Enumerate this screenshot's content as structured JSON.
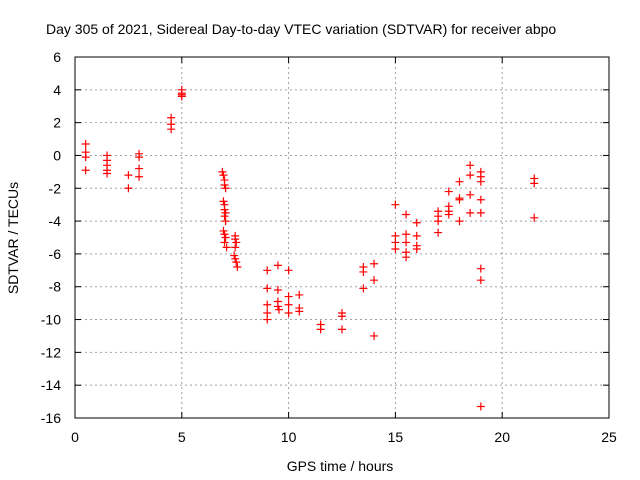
{
  "chart_data": {
    "type": "scatter",
    "title": "Day 305 of 2021, Sidereal Day-to-day VTEC variation (SDTVAR) for receiver abpo",
    "xlabel": "GPS time / hours",
    "ylabel": "SDTVAR / TECUs",
    "xlim": [
      0,
      25
    ],
    "ylim": [
      -16,
      6
    ],
    "xticks": [
      "0",
      "5",
      "10",
      "15",
      "20",
      "25"
    ],
    "yticks": [
      "6",
      "4",
      "2",
      "0",
      "-2",
      "-4",
      "-6",
      "-8",
      "-10",
      "-12",
      "-14",
      "-16"
    ],
    "grid": true,
    "marker": "plus",
    "color": "#ff0000",
    "series": [
      {
        "name": "SDTVAR",
        "points": [
          [
            0.5,
            0.7
          ],
          [
            0.5,
            0.2
          ],
          [
            0.5,
            -0.1
          ],
          [
            0.5,
            -0.9
          ],
          [
            1.5,
            0.0
          ],
          [
            1.5,
            -0.3
          ],
          [
            1.5,
            -0.6
          ],
          [
            1.5,
            -0.9
          ],
          [
            1.5,
            -1.1
          ],
          [
            2.5,
            -1.2
          ],
          [
            2.5,
            -2.0
          ],
          [
            3.0,
            0.1
          ],
          [
            3.0,
            -0.1
          ],
          [
            3.0,
            -0.8
          ],
          [
            3.0,
            -1.3
          ],
          [
            4.5,
            2.3
          ],
          [
            4.5,
            1.9
          ],
          [
            4.5,
            1.6
          ],
          [
            5.0,
            4.0
          ],
          [
            5.0,
            3.8
          ],
          [
            5.0,
            3.7
          ],
          [
            5.0,
            3.6
          ],
          [
            6.9,
            -1.0
          ],
          [
            6.95,
            -1.2
          ],
          [
            7.0,
            -1.5
          ],
          [
            7.0,
            -1.8
          ],
          [
            7.05,
            -2.0
          ],
          [
            6.95,
            -2.8
          ],
          [
            7.0,
            -3.0
          ],
          [
            7.0,
            -3.3
          ],
          [
            7.05,
            -3.5
          ],
          [
            7.0,
            -3.7
          ],
          [
            7.05,
            -4.0
          ],
          [
            6.95,
            -4.6
          ],
          [
            7.0,
            -4.8
          ],
          [
            7.05,
            -5.0
          ],
          [
            7.0,
            -5.3
          ],
          [
            7.1,
            -5.6
          ],
          [
            7.5,
            -4.9
          ],
          [
            7.5,
            -5.1
          ],
          [
            7.55,
            -5.3
          ],
          [
            7.5,
            -5.6
          ],
          [
            7.45,
            -6.1
          ],
          [
            7.5,
            -6.3
          ],
          [
            7.55,
            -6.5
          ],
          [
            7.6,
            -6.8
          ],
          [
            9.0,
            -7.0
          ],
          [
            9.0,
            -8.1
          ],
          [
            9.0,
            -9.1
          ],
          [
            9.0,
            -9.6
          ],
          [
            9.0,
            -10.0
          ],
          [
            9.5,
            -6.7
          ],
          [
            9.5,
            -8.2
          ],
          [
            9.5,
            -8.9
          ],
          [
            9.5,
            -9.2
          ],
          [
            9.55,
            -9.4
          ],
          [
            10.0,
            -7.0
          ],
          [
            10.0,
            -8.6
          ],
          [
            10.0,
            -9.1
          ],
          [
            10.0,
            -9.6
          ],
          [
            10.5,
            -8.5
          ],
          [
            10.5,
            -9.3
          ],
          [
            10.5,
            -9.5
          ],
          [
            11.5,
            -10.3
          ],
          [
            11.5,
            -10.6
          ],
          [
            12.5,
            -9.6
          ],
          [
            12.5,
            -9.8
          ],
          [
            12.5,
            -10.6
          ],
          [
            13.5,
            -6.8
          ],
          [
            13.5,
            -7.1
          ],
          [
            13.5,
            -8.1
          ],
          [
            14.0,
            -6.6
          ],
          [
            14.0,
            -7.6
          ],
          [
            14.0,
            -11.0
          ],
          [
            15.0,
            -3.0
          ],
          [
            15.0,
            -4.9
          ],
          [
            15.0,
            -5.3
          ],
          [
            15.0,
            -5.7
          ],
          [
            15.5,
            -3.6
          ],
          [
            15.5,
            -4.8
          ],
          [
            15.5,
            -5.3
          ],
          [
            15.5,
            -5.9
          ],
          [
            15.5,
            -6.2
          ],
          [
            16.0,
            -4.1
          ],
          [
            16.0,
            -4.9
          ],
          [
            16.0,
            -5.5
          ],
          [
            16.0,
            -5.7
          ],
          [
            17.0,
            -3.4
          ],
          [
            17.0,
            -3.7
          ],
          [
            17.0,
            -4.0
          ],
          [
            17.0,
            -4.7
          ],
          [
            17.5,
            -2.2
          ],
          [
            17.5,
            -3.1
          ],
          [
            17.5,
            -3.4
          ],
          [
            17.5,
            -3.6
          ],
          [
            18.0,
            -1.6
          ],
          [
            18.0,
            -2.6
          ],
          [
            18.0,
            -2.7
          ],
          [
            18.0,
            -4.0
          ],
          [
            18.5,
            -0.6
          ],
          [
            18.5,
            -1.2
          ],
          [
            18.5,
            -2.4
          ],
          [
            18.5,
            -3.5
          ],
          [
            19.0,
            -1.0
          ],
          [
            19.0,
            -1.3
          ],
          [
            19.0,
            -1.6
          ],
          [
            19.0,
            -2.7
          ],
          [
            19.0,
            -3.5
          ],
          [
            19.0,
            -6.9
          ],
          [
            19.0,
            -7.6
          ],
          [
            19.0,
            -15.3
          ],
          [
            21.5,
            -1.4
          ],
          [
            21.5,
            -1.7
          ],
          [
            21.5,
            -3.8
          ]
        ]
      }
    ]
  }
}
